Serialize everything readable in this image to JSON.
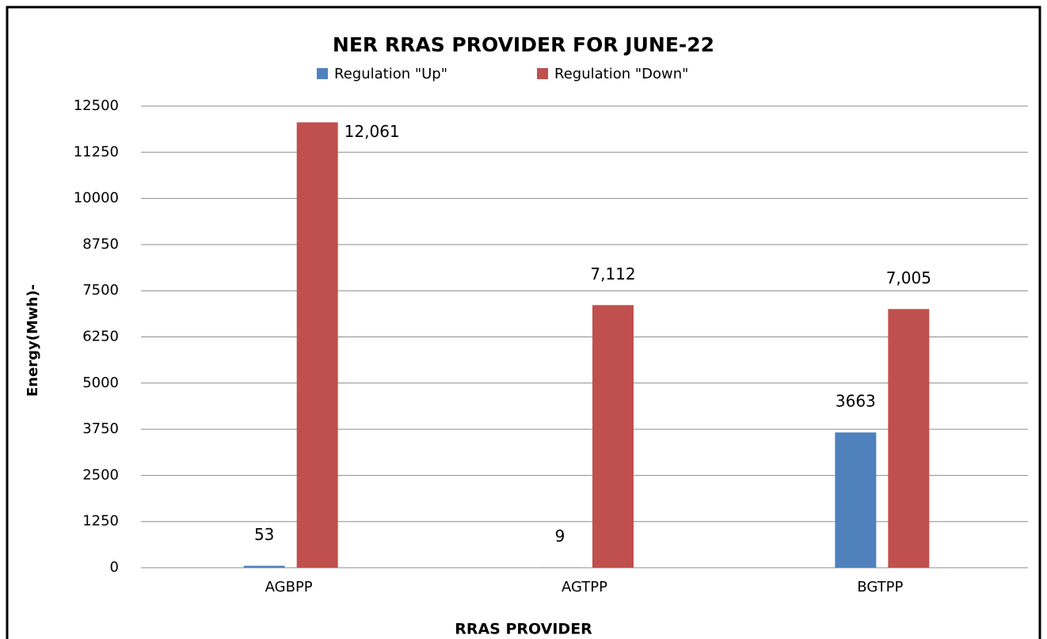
{
  "chart_data": {
    "type": "bar",
    "title": "NER RRAS PROVIDER FOR JUNE-22",
    "x_label": "RRAS PROVIDER",
    "y_label": "Energy(Mwh)-",
    "categories": [
      "AGBPP",
      "AGTPP",
      "BGTPP"
    ],
    "series": [
      {
        "name": "Regulation \"Up\"",
        "color": "#4f81bd",
        "values": [
          53,
          9,
          3663
        ]
      },
      {
        "name": "Regulation \"Down\"",
        "color": "#c0504d",
        "values": [
          12061,
          7112,
          7005
        ],
        "value_labels": [
          "12,061",
          "7,112",
          "7,005"
        ]
      }
    ],
    "ylim": [
      0,
      12500
    ],
    "yticks": [
      0,
      1250,
      2500,
      3750,
      5000,
      6250,
      7500,
      8750,
      10000,
      11250,
      12500
    ],
    "grid": true,
    "legend": "top"
  }
}
